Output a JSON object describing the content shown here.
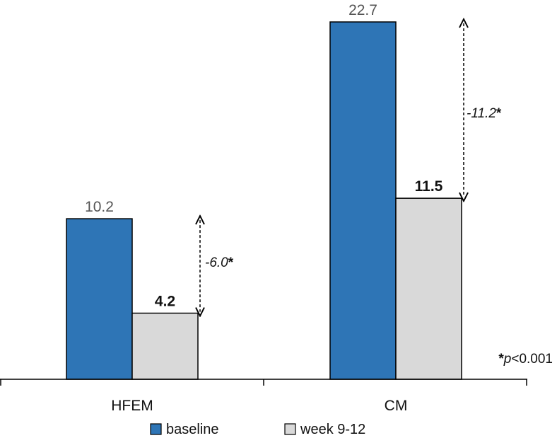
{
  "chart_data": {
    "type": "bar",
    "categories": [
      "HFEM",
      "CM"
    ],
    "series": [
      {
        "name": "baseline",
        "values": [
          10.2,
          22.7
        ],
        "color": "#2e75b6"
      },
      {
        "name": "week 9-12",
        "values": [
          4.2,
          11.5
        ],
        "color": "#d9d9d9"
      }
    ],
    "data_labels": [
      [
        "10.2",
        "22.7"
      ],
      [
        "4.2",
        "11.5"
      ]
    ],
    "annotations": [
      {
        "category": "HFEM",
        "value_text": "-6.0",
        "mark": "*"
      },
      {
        "category": "CM",
        "value_text": "-11.2",
        "mark": "*"
      }
    ],
    "footnote": {
      "mark": "*",
      "var": "p",
      "rest": "<0.001"
    },
    "ylim": [
      0,
      22.7
    ],
    "grid": false,
    "legend_position": "bottom"
  }
}
